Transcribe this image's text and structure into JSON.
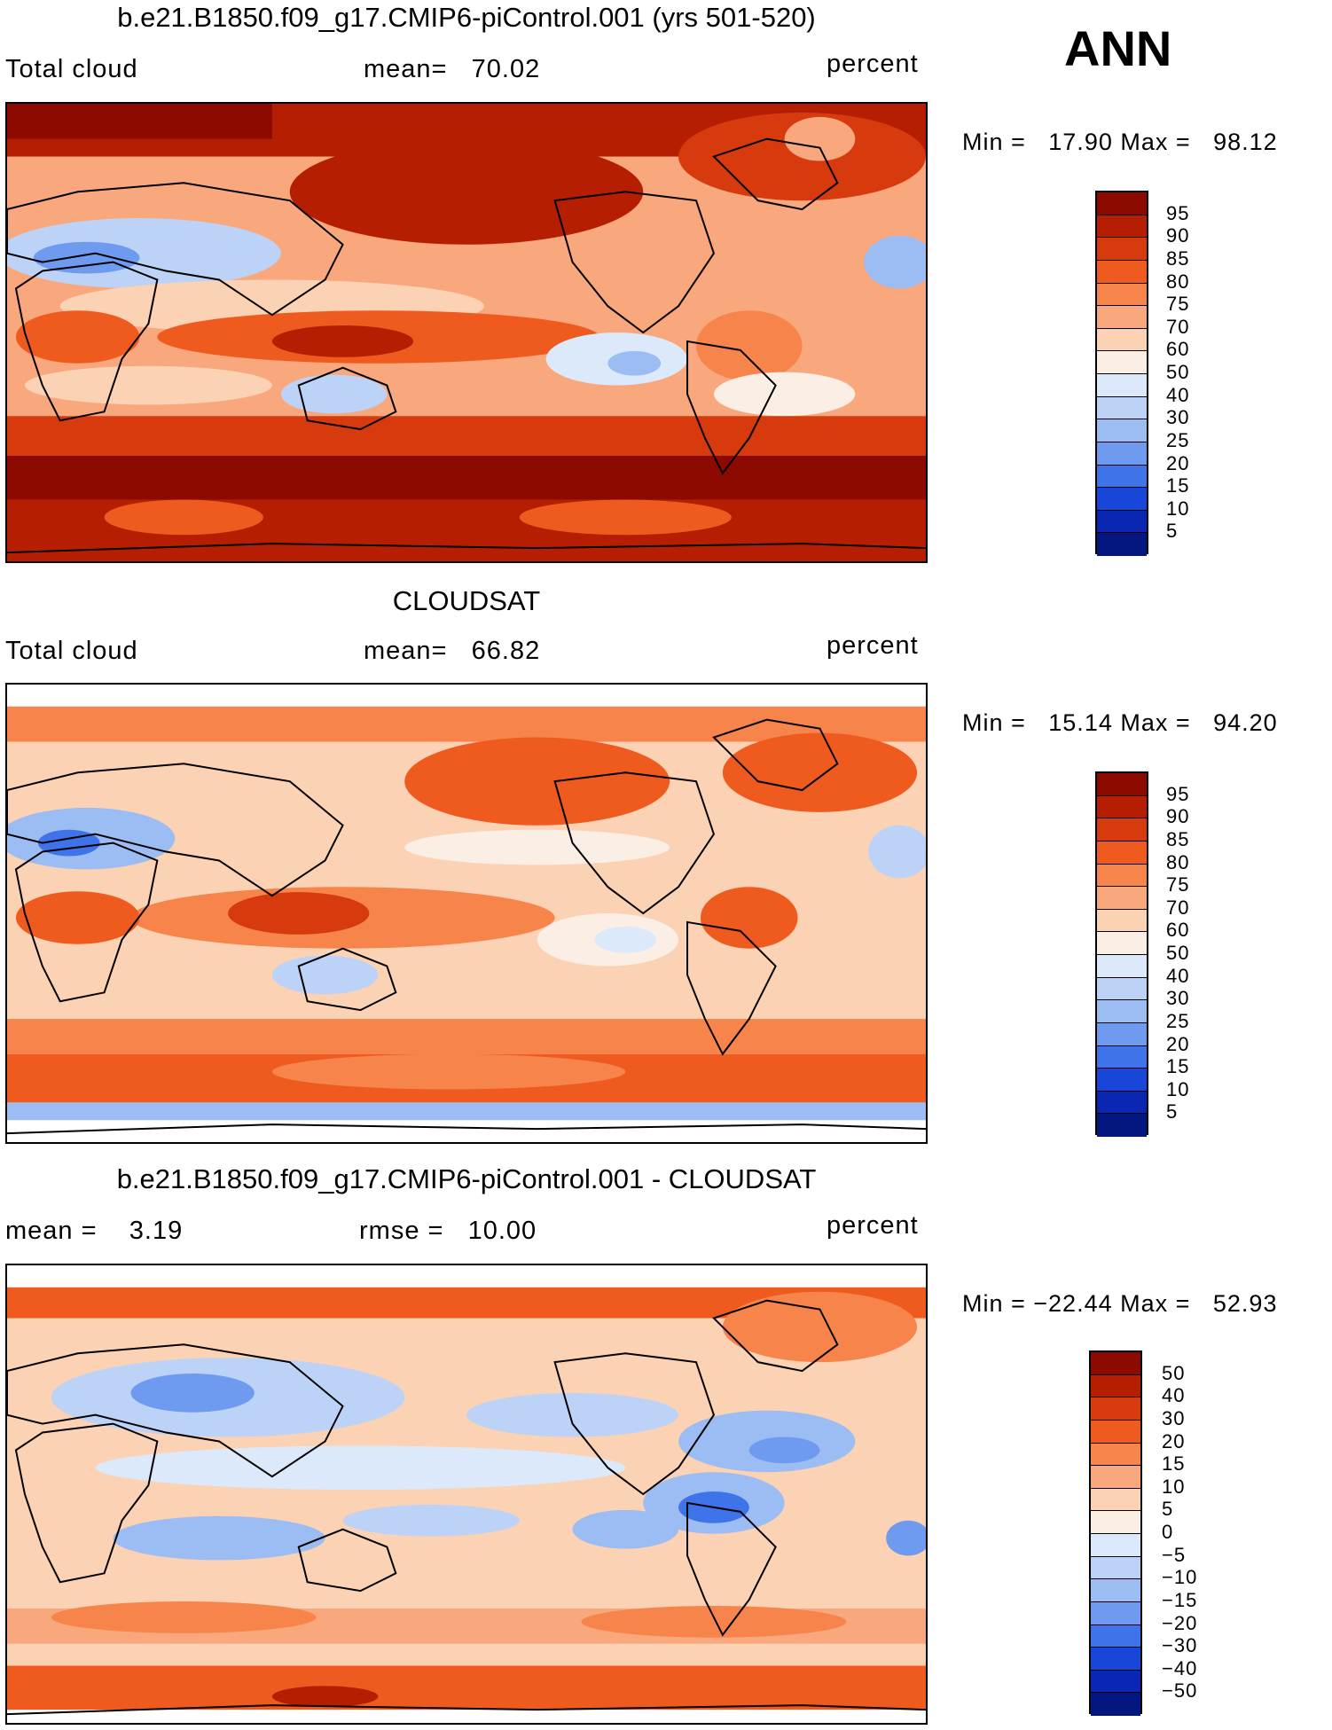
{
  "season": "ANN",
  "panels": [
    {
      "title": "b.e21.B1850.f09_g17.CMIP6-piControl.001 (yrs 501-520)",
      "left_label": "Total cloud",
      "center_label": "mean=   70.02",
      "units": "percent",
      "minmax": "Min =   17.90 Max =   98.12",
      "colorbar_labels": [
        "95",
        "90",
        "85",
        "80",
        "75",
        "70",
        "60",
        "50",
        "40",
        "30",
        "25",
        "20",
        "15",
        "10",
        "5"
      ]
    },
    {
      "title": "CLOUDSAT",
      "left_label": "Total cloud",
      "center_label": "mean=   66.82",
      "units": "percent",
      "minmax": "Min =   15.14 Max =   94.20",
      "colorbar_labels": [
        "95",
        "90",
        "85",
        "80",
        "75",
        "70",
        "60",
        "50",
        "40",
        "30",
        "25",
        "20",
        "15",
        "10",
        "5"
      ]
    },
    {
      "title": "b.e21.B1850.f09_g17.CMIP6-piControl.001 - CLOUDSAT",
      "left_label": "mean =    3.19",
      "center_label": "rmse =   10.00",
      "units": "percent",
      "minmax": "Min = −22.44 Max =   52.93",
      "colorbar_labels": [
        "50",
        "40",
        "30",
        "20",
        "15",
        "10",
        "5",
        "0",
        "−5",
        "−10",
        "−15",
        "−20",
        "−30",
        "−40",
        "−50"
      ]
    }
  ],
  "colorbar_colors": [
    "#8c0a00",
    "#b51e00",
    "#d63a0d",
    "#ef5a1e",
    "#f7844a",
    "#f9a77c",
    "#fcd2b5",
    "#fbeee5",
    "#dce9fa",
    "#bcd3f7",
    "#9cbcf4",
    "#6e9bf0",
    "#3f73ea",
    "#1846d8",
    "#0a27b4",
    "#041781"
  ],
  "chart_data": [
    {
      "type": "heatmap",
      "title": "b.e21.B1850.f09_g17.CMIP6-piControl.001 (yrs 501-520)",
      "field": "Total cloud",
      "units": "percent",
      "mean": 70.02,
      "min": 17.9,
      "max": 98.12,
      "levels": [
        5,
        10,
        15,
        20,
        25,
        30,
        40,
        50,
        60,
        70,
        75,
        80,
        85,
        90,
        95
      ]
    },
    {
      "type": "heatmap",
      "title": "CLOUDSAT",
      "field": "Total cloud",
      "units": "percent",
      "mean": 66.82,
      "min": 15.14,
      "max": 94.2,
      "levels": [
        5,
        10,
        15,
        20,
        25,
        30,
        40,
        50,
        60,
        70,
        75,
        80,
        85,
        90,
        95
      ]
    },
    {
      "type": "heatmap",
      "title": "b.e21.B1850.f09_g17.CMIP6-piControl.001 - CLOUDSAT",
      "units": "percent",
      "mean": 3.19,
      "rmse": 10.0,
      "min": -22.44,
      "max": 52.93,
      "levels": [
        -50,
        -40,
        -30,
        -20,
        -15,
        -10,
        -5,
        0,
        5,
        10,
        15,
        20,
        30,
        40,
        50
      ]
    }
  ]
}
